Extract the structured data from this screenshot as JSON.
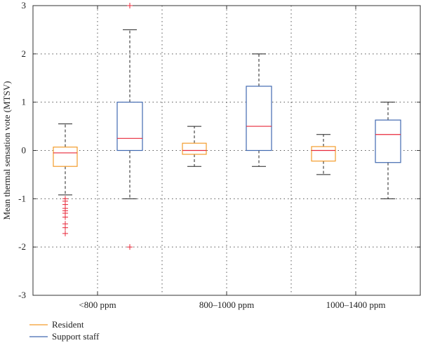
{
  "chart_data": {
    "type": "box",
    "title": "",
    "xlabel": "",
    "ylabel": "Mean thermal sensation vote (MTSV)",
    "ylim": [
      -3,
      3
    ],
    "yticks": [
      -3,
      -2,
      -1,
      0,
      1,
      2,
      3
    ],
    "grid": true,
    "legend_position": "bottom-left",
    "categories": [
      "<800 ppm",
      "800–1000 ppm",
      "1000–1400 ppm"
    ],
    "series": [
      {
        "name": "Resident",
        "color": "#f39c2b",
        "boxes": [
          {
            "whisker_low": -0.92,
            "q1": -0.33,
            "median": -0.05,
            "q3": 0.07,
            "whisker_high": 0.55,
            "outliers": [
              -1.0,
              -1.05,
              -1.12,
              -1.2,
              -1.25,
              -1.3,
              -1.38,
              -1.52,
              -1.6,
              -1.72
            ]
          },
          {
            "whisker_low": -0.33,
            "q1": -0.08,
            "median": 0.0,
            "q3": 0.15,
            "whisker_high": 0.5,
            "outliers": []
          },
          {
            "whisker_low": -0.5,
            "q1": -0.22,
            "median": 0.0,
            "q3": 0.08,
            "whisker_high": 0.33,
            "outliers": []
          }
        ]
      },
      {
        "name": "Support staff",
        "color": "#4169b0",
        "boxes": [
          {
            "whisker_low": -1.0,
            "q1": 0.0,
            "median": 0.25,
            "q3": 1.0,
            "whisker_high": 2.5,
            "outliers": [
              3.0,
              -2.0
            ]
          },
          {
            "whisker_low": -0.33,
            "q1": 0.0,
            "median": 0.5,
            "q3": 1.33,
            "whisker_high": 2.0,
            "outliers": []
          },
          {
            "whisker_low": -1.0,
            "q1": -0.25,
            "median": 0.33,
            "q3": 0.63,
            "whisker_high": 1.0,
            "outliers": []
          }
        ]
      }
    ],
    "median_color": "#e8283a",
    "outlier_color": "#e8283a"
  }
}
